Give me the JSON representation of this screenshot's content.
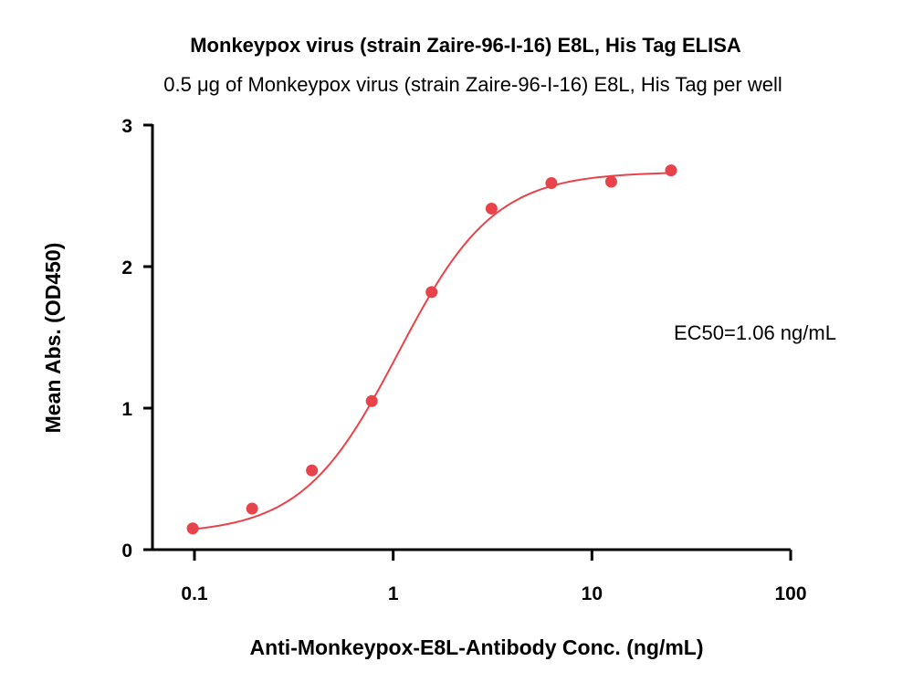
{
  "chart_data": {
    "type": "scatter",
    "title": "Monkeypox virus (strain Zaire-96-I-16) E8L, His Tag ELISA",
    "subtitle": "0.5 μg of Monkeypox virus (strain Zaire-96-I-16) E8L, His Tag per well",
    "xlabel": "Anti-Monkeypox-E8L-Antibody Conc. (ng/mL)",
    "ylabel": "Mean Abs. (OD450)",
    "x_scale": "log",
    "xlim": [
      0.1,
      100
    ],
    "ylim": [
      0,
      3
    ],
    "x_ticks": [
      0.1,
      1,
      10,
      100
    ],
    "x_tick_labels": [
      "0.1",
      "1",
      "10",
      "100"
    ],
    "y_ticks": [
      0,
      1,
      2,
      3
    ],
    "y_tick_labels": [
      "0",
      "1",
      "2",
      "3"
    ],
    "grid": false,
    "annotation": "EC50=1.06 ng/mL",
    "series": [
      {
        "color": "#e8434a",
        "x": [
          0.098,
          0.195,
          0.39,
          0.78,
          1.56,
          3.125,
          6.25,
          12.5,
          25
        ],
        "y": [
          0.15,
          0.29,
          0.56,
          1.05,
          1.82,
          2.41,
          2.59,
          2.6,
          2.68
        ],
        "fit": {
          "model": "4PL",
          "bottom": 0.11,
          "top": 2.67,
          "ec50": 1.06,
          "hill": 1.8
        }
      }
    ]
  }
}
